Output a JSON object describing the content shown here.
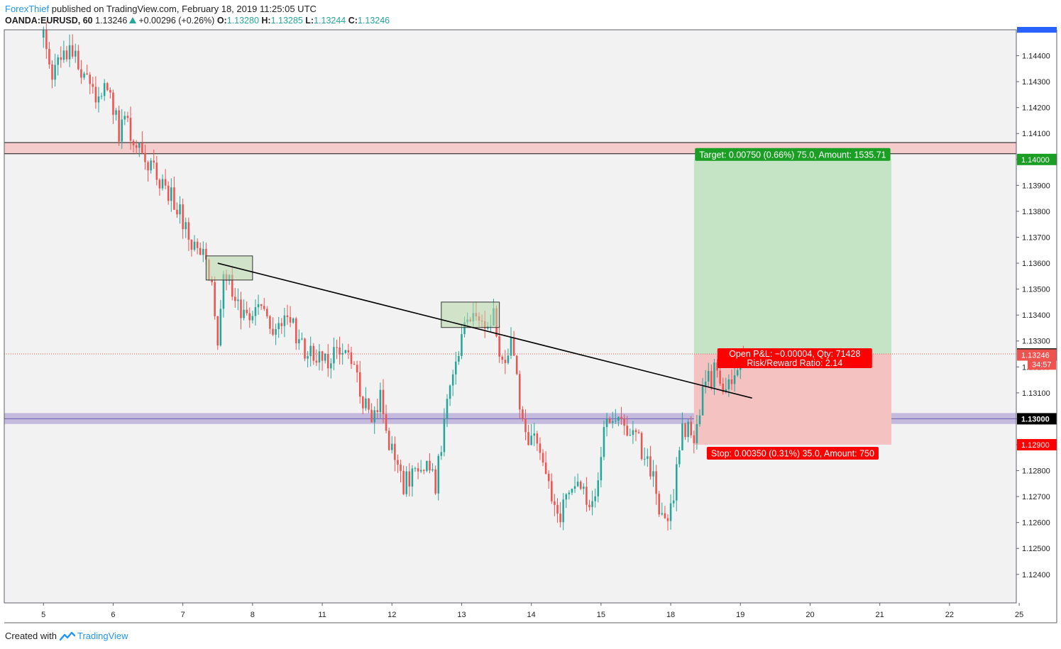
{
  "header": {
    "author": "ForexThief",
    "published": "published on TradingView.com, February 18, 2019 11:25:05 UTC",
    "symbol": "OANDA:EURUSD, 60",
    "last": "1.13246",
    "change": "+0.00296 (+0.26%)",
    "o_label": "O:",
    "o_val": "1.13280",
    "h_label": "H:",
    "h_val": "1.13285",
    "l_label": "L:",
    "l_val": "1.13244",
    "c_label": "C:",
    "c_val": "1.13246"
  },
  "footer": {
    "created": "Created with",
    "brand": "TradingView"
  },
  "colors": {
    "up": "#26a69a",
    "down": "#ef5350",
    "background": "#f2f2f2",
    "resistance_zone": "#f4cccc",
    "support_zone": "#b4a7d6",
    "target_zone": "#c5e4c6",
    "stop_zone": "#f5c2c2",
    "target_label": "#1a9f24",
    "stop_label": "#ff0000"
  },
  "chart_data": {
    "type": "candlestick",
    "timeframe": "60",
    "x_ticks": [
      {
        "label": "5",
        "t": 0
      },
      {
        "label": "6",
        "t": 24
      },
      {
        "label": "7",
        "t": 48
      },
      {
        "label": "8",
        "t": 72
      },
      {
        "label": "11",
        "t": 96
      },
      {
        "label": "12",
        "t": 120
      },
      {
        "label": "13",
        "t": 144
      },
      {
        "label": "14",
        "t": 168
      },
      {
        "label": "15",
        "t": 192
      },
      {
        "label": "18",
        "t": 216
      },
      {
        "label": "19",
        "t": 240
      },
      {
        "label": "20",
        "t": 264
      },
      {
        "label": "21",
        "t": 288
      },
      {
        "label": "22",
        "t": 312
      },
      {
        "label": "25",
        "t": 336
      }
    ],
    "y_ticks": [
      "1.12400",
      "1.12500",
      "1.12600",
      "1.12700",
      "1.12800",
      "1.12900",
      "1.13000",
      "1.13100",
      "1.13200",
      "1.13300",
      "1.13400",
      "1.13500",
      "1.13600",
      "1.13700",
      "1.13800",
      "1.13900",
      "1.14000",
      "1.14100",
      "1.14200",
      "1.14300",
      "1.14400"
    ],
    "ylim": [
      1.1229,
      1.145
    ],
    "xlim": [
      -13.5,
      335
    ],
    "price_labels": [
      {
        "label": "1.14000",
        "value": 1.14,
        "kind": "target"
      },
      {
        "label": "1.13250",
        "value": 1.1325,
        "kind": "entry"
      },
      {
        "label": "1.13246",
        "value": 1.13246,
        "kind": "last"
      },
      {
        "label": "34:57",
        "value": 1.13211,
        "kind": "countdown"
      },
      {
        "label": "1.13000",
        "value": 1.13,
        "kind": "support"
      },
      {
        "label": "1.12900",
        "value": 1.129,
        "kind": "stop"
      }
    ],
    "zones": [
      {
        "name": "resistance",
        "from": 1.14022,
        "to": 1.14065
      },
      {
        "name": "support",
        "from": 1.1298,
        "to": 1.13022
      }
    ],
    "trendline": {
      "t1": 60,
      "p1": 1.136,
      "t2": 244,
      "p2": 1.1308
    },
    "boxes": [
      {
        "name": "left-box",
        "t1": 56,
        "t2": 72,
        "p1": 1.13535,
        "p2": 1.13628
      },
      {
        "name": "mid-box",
        "t1": 137,
        "t2": 157,
        "p1": 1.13352,
        "p2": 1.1345
      }
    ],
    "position": {
      "entry": 1.1325,
      "target": 1.14,
      "stop": 1.129,
      "t_start": 224,
      "t_end": 292,
      "target_text": "Target: 0.00750 (0.66%) 75.0, Amount: 1535.71",
      "stop_text": "Stop: 0.00350 (0.31%) 35.0, Amount: 750",
      "pnl_text": "Open P&L: −0.00004, Qty: 71428",
      "rr_text": "Risk/Reward Ratio: 2.14"
    },
    "anchors": [
      [
        0,
        1.1447
      ],
      [
        3,
        1.1432
      ],
      [
        6,
        1.1438
      ],
      [
        10,
        1.1441
      ],
      [
        14,
        1.1432
      ],
      [
        19,
        1.1424
      ],
      [
        22,
        1.1428
      ],
      [
        26,
        1.1411
      ],
      [
        29,
        1.1413
      ],
      [
        33,
        1.1404
      ],
      [
        36,
        1.14
      ],
      [
        40,
        1.1391
      ],
      [
        44,
        1.1386
      ],
      [
        48,
        1.1377
      ],
      [
        52,
        1.1365
      ],
      [
        55,
        1.1362
      ],
      [
        58,
        1.1355
      ],
      [
        60,
        1.133
      ],
      [
        62,
        1.136
      ],
      [
        66,
        1.1345
      ],
      [
        70,
        1.134
      ],
      [
        76,
        1.134
      ],
      [
        80,
        1.1333
      ],
      [
        84,
        1.1343
      ],
      [
        88,
        1.133
      ],
      [
        92,
        1.1325
      ],
      [
        98,
        1.1322
      ],
      [
        101,
        1.1326
      ],
      [
        106,
        1.132
      ],
      [
        110,
        1.1307
      ],
      [
        113,
        1.13
      ],
      [
        116,
        1.131
      ],
      [
        121,
        1.128
      ],
      [
        124,
        1.1275
      ],
      [
        128,
        1.128
      ],
      [
        132,
        1.1283
      ],
      [
        135,
        1.1273
      ],
      [
        138,
        1.1298
      ],
      [
        142,
        1.1325
      ],
      [
        147,
        1.1338
      ],
      [
        152,
        1.1336
      ],
      [
        155,
        1.134
      ],
      [
        157,
        1.1322
      ],
      [
        161,
        1.133
      ],
      [
        165,
        1.1298
      ],
      [
        169,
        1.129
      ],
      [
        173,
        1.1275
      ],
      [
        177,
        1.1262
      ],
      [
        181,
        1.1272
      ],
      [
        184,
        1.128
      ],
      [
        187,
        1.127
      ],
      [
        190,
        1.1268
      ],
      [
        193,
        1.13
      ],
      [
        196,
        1.1302
      ],
      [
        199,
        1.1298
      ],
      [
        202,
        1.1292
      ],
      [
        205,
        1.129
      ],
      [
        208,
        1.1285
      ],
      [
        211,
        1.1272
      ],
      [
        214,
        1.1258
      ],
      [
        217,
        1.1268
      ],
      [
        220,
        1.1298
      ],
      [
        224,
        1.1292
      ],
      [
        227,
        1.131
      ],
      [
        231,
        1.1318
      ],
      [
        234,
        1.1312
      ],
      [
        237,
        1.1317
      ],
      [
        239,
        1.1323
      ],
      [
        240,
        1.1325
      ],
      [
        241,
        1.13246
      ]
    ]
  }
}
